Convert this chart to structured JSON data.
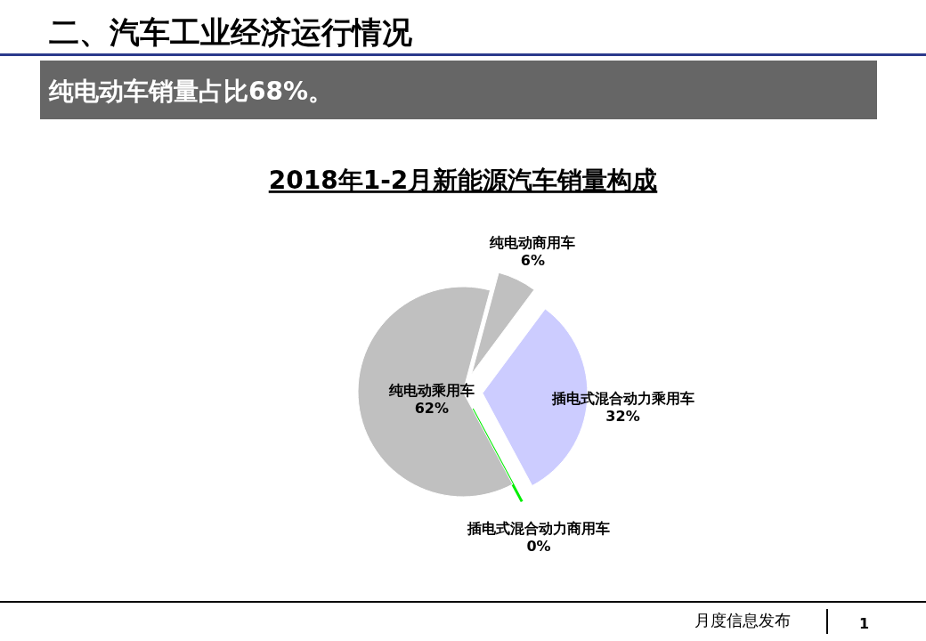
{
  "chart_data": {
    "type": "pie",
    "title": "2018年1-2月新能源汽车销量构成",
    "categories": [
      "纯电动商用车",
      "插电式混合动力乘用车",
      "插电式混合动力商用车",
      "纯电动乘用车"
    ],
    "values": [
      6,
      32,
      0,
      62
    ],
    "colors": [
      "#c0c0c0",
      "#ccccff",
      "#00ee00",
      "#c0c0c0"
    ],
    "value_labels": [
      "6%",
      "32%",
      "0%",
      "62%"
    ],
    "annotations": [
      "二、汽车工业经济运行情况",
      "纯电动车销量占比68%。",
      "月度信息发布",
      "1"
    ]
  }
}
